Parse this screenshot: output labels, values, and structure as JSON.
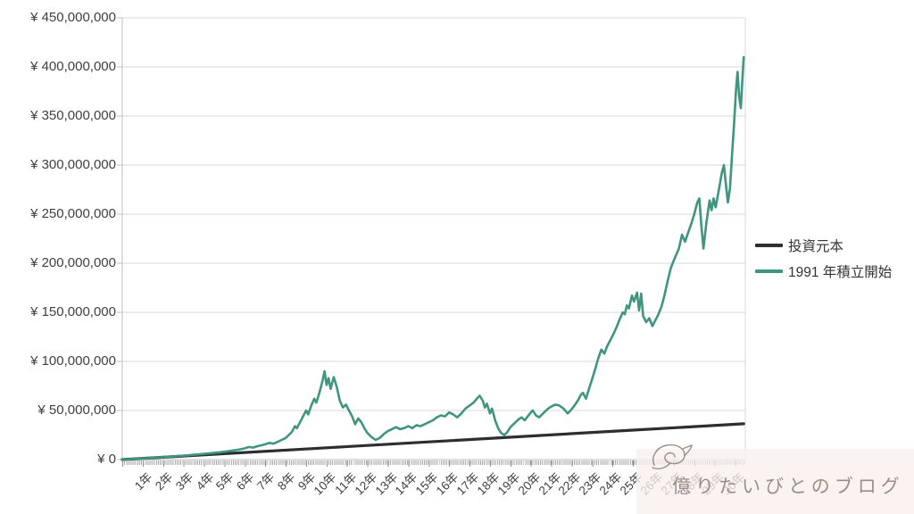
{
  "colors": {
    "principal_line": "#2E2E2E",
    "value_line": "#3F9580",
    "gridline": "#D9D9D9",
    "axis_line": "#BFBFBF",
    "tick_mark": "#9a9a9a",
    "axis_text": "#404040",
    "watermark_bg": "#F9F0ED",
    "watermark_text": "#9D8D86"
  },
  "legend": {
    "items": [
      {
        "label": "投資元本"
      },
      {
        "label": "1991 年積立開始"
      }
    ]
  },
  "watermark": {
    "text": "億りたいびとのブログ",
    "logo": "bird-sketch-icon"
  },
  "chart_data": {
    "type": "line",
    "title": "",
    "xlabel": "",
    "ylabel": "",
    "grid": "horizontal",
    "legend_position": "right",
    "x_axis": {
      "max_years": 30.5,
      "tick_labels": [
        "1年",
        "2年",
        "3年",
        "4年",
        "5年",
        "6年",
        "7年",
        "8年",
        "9年",
        "10年",
        "11年",
        "12年",
        "13年",
        "14年",
        "15年",
        "16年",
        "17年",
        "18年",
        "19年",
        "20年",
        "21年",
        "22年",
        "23年",
        "24年",
        "25年",
        "26年",
        "27年",
        "28年",
        "29年",
        "30年"
      ]
    },
    "y_axis": {
      "min": 0,
      "max": 450000000,
      "step": 50000000,
      "tick_labels": [
        "¥ 0",
        "¥ 50,000,000",
        "¥ 100,000,000",
        "¥ 150,000,000",
        "¥ 200,000,000",
        "¥ 250,000,000",
        "¥ 300,000,000",
        "¥ 350,000,000",
        "¥ 400,000,000",
        "¥ 450,000,000"
      ]
    },
    "units_note": "points are [years_since_1991_start, value_in_million_yen]",
    "series": [
      {
        "name": "投資元本",
        "color": "#2E2E2E",
        "stroke_width": 3.2,
        "points": [
          [
            0,
            0
          ],
          [
            5,
            6
          ],
          [
            10,
            12
          ],
          [
            15,
            18
          ],
          [
            20,
            24
          ],
          [
            25,
            30
          ],
          [
            30.42,
            36.5
          ]
        ]
      },
      {
        "name": "1991年積立開始",
        "color": "#3F9580",
        "stroke_width": 2.6,
        "points": [
          [
            0,
            0.05
          ],
          [
            0.25,
            0.3
          ],
          [
            0.5,
            0.6
          ],
          [
            0.75,
            0.9
          ],
          [
            1,
            1.2
          ],
          [
            1.25,
            1.5
          ],
          [
            1.5,
            1.9
          ],
          [
            1.75,
            2.2
          ],
          [
            2,
            2.5
          ],
          [
            2.25,
            2.9
          ],
          [
            2.5,
            3.2
          ],
          [
            2.75,
            3.6
          ],
          [
            3,
            4.0
          ],
          [
            3.25,
            4.4
          ],
          [
            3.5,
            4.9
          ],
          [
            3.75,
            5.3
          ],
          [
            4,
            5.8
          ],
          [
            4.25,
            6.3
          ],
          [
            4.5,
            6.9
          ],
          [
            4.75,
            7.4
          ],
          [
            5,
            8.0
          ],
          [
            5.25,
            8.7
          ],
          [
            5.5,
            9.5
          ],
          [
            5.75,
            10.4
          ],
          [
            6,
            11.5
          ],
          [
            6.2,
            12.8
          ],
          [
            6.4,
            12.2
          ],
          [
            6.6,
            13.5
          ],
          [
            6.8,
            14.5
          ],
          [
            7,
            15.5
          ],
          [
            7.2,
            17
          ],
          [
            7.4,
            16.2
          ],
          [
            7.6,
            18
          ],
          [
            7.8,
            20
          ],
          [
            8,
            22
          ],
          [
            8.15,
            25
          ],
          [
            8.3,
            28
          ],
          [
            8.45,
            34
          ],
          [
            8.55,
            32
          ],
          [
            8.7,
            38
          ],
          [
            8.85,
            44
          ],
          [
            9.0,
            50
          ],
          [
            9.1,
            46
          ],
          [
            9.25,
            55
          ],
          [
            9.4,
            62
          ],
          [
            9.5,
            58
          ],
          [
            9.65,
            68
          ],
          [
            9.8,
            80
          ],
          [
            9.9,
            90
          ],
          [
            10.0,
            76
          ],
          [
            10.1,
            83
          ],
          [
            10.2,
            72
          ],
          [
            10.35,
            84
          ],
          [
            10.5,
            74
          ],
          [
            10.65,
            60
          ],
          [
            10.8,
            53
          ],
          [
            10.95,
            56
          ],
          [
            11.1,
            50
          ],
          [
            11.25,
            44
          ],
          [
            11.4,
            36
          ],
          [
            11.55,
            42
          ],
          [
            11.7,
            38
          ],
          [
            11.85,
            32
          ],
          [
            12.0,
            27
          ],
          [
            12.2,
            23
          ],
          [
            12.4,
            20
          ],
          [
            12.6,
            22
          ],
          [
            12.8,
            26
          ],
          [
            13.0,
            29
          ],
          [
            13.2,
            31
          ],
          [
            13.4,
            33
          ],
          [
            13.6,
            31
          ],
          [
            13.8,
            32
          ],
          [
            14.0,
            34
          ],
          [
            14.2,
            32
          ],
          [
            14.4,
            35
          ],
          [
            14.6,
            34
          ],
          [
            14.8,
            36
          ],
          [
            15.0,
            38
          ],
          [
            15.2,
            40
          ],
          [
            15.4,
            43
          ],
          [
            15.6,
            45
          ],
          [
            15.8,
            44
          ],
          [
            16.0,
            48
          ],
          [
            16.2,
            46
          ],
          [
            16.4,
            43
          ],
          [
            16.6,
            47
          ],
          [
            16.8,
            52
          ],
          [
            17.0,
            55
          ],
          [
            17.2,
            58
          ],
          [
            17.4,
            63
          ],
          [
            17.5,
            65
          ],
          [
            17.65,
            60
          ],
          [
            17.75,
            53
          ],
          [
            17.85,
            57
          ],
          [
            18.0,
            47
          ],
          [
            18.1,
            52
          ],
          [
            18.25,
            40
          ],
          [
            18.4,
            32
          ],
          [
            18.55,
            27
          ],
          [
            18.7,
            25
          ],
          [
            18.85,
            28
          ],
          [
            19.0,
            33
          ],
          [
            19.2,
            37
          ],
          [
            19.4,
            41
          ],
          [
            19.55,
            43
          ],
          [
            19.7,
            40
          ],
          [
            19.85,
            44
          ],
          [
            20.0,
            48
          ],
          [
            20.1,
            50
          ],
          [
            20.25,
            45
          ],
          [
            20.4,
            43
          ],
          [
            20.55,
            46
          ],
          [
            20.7,
            49
          ],
          [
            20.85,
            52
          ],
          [
            21.0,
            54
          ],
          [
            21.2,
            56
          ],
          [
            21.4,
            55
          ],
          [
            21.6,
            52
          ],
          [
            21.8,
            47
          ],
          [
            21.95,
            50
          ],
          [
            22.1,
            54
          ],
          [
            22.3,
            60
          ],
          [
            22.45,
            66
          ],
          [
            22.55,
            68
          ],
          [
            22.7,
            62
          ],
          [
            22.85,
            72
          ],
          [
            23.0,
            82
          ],
          [
            23.15,
            92
          ],
          [
            23.3,
            103
          ],
          [
            23.45,
            112
          ],
          [
            23.6,
            108
          ],
          [
            23.75,
            116
          ],
          [
            23.9,
            122
          ],
          [
            24.05,
            128
          ],
          [
            24.2,
            135
          ],
          [
            24.35,
            143
          ],
          [
            24.5,
            150
          ],
          [
            24.6,
            148
          ],
          [
            24.7,
            157
          ],
          [
            24.8,
            154
          ],
          [
            24.95,
            167
          ],
          [
            25.05,
            161
          ],
          [
            25.2,
            170
          ],
          [
            25.3,
            152
          ],
          [
            25.4,
            169
          ],
          [
            25.5,
            146
          ],
          [
            25.65,
            140
          ],
          [
            25.8,
            144
          ],
          [
            25.95,
            136
          ],
          [
            26.1,
            142
          ],
          [
            26.25,
            148
          ],
          [
            26.4,
            156
          ],
          [
            26.55,
            168
          ],
          [
            26.7,
            182
          ],
          [
            26.85,
            195
          ],
          [
            27.0,
            203
          ],
          [
            27.15,
            210
          ],
          [
            27.25,
            215
          ],
          [
            27.4,
            229
          ],
          [
            27.55,
            222
          ],
          [
            27.7,
            231
          ],
          [
            27.85,
            240
          ],
          [
            28.0,
            250
          ],
          [
            28.15,
            262
          ],
          [
            28.25,
            266
          ],
          [
            28.35,
            238
          ],
          [
            28.45,
            215
          ],
          [
            28.6,
            242
          ],
          [
            28.75,
            264
          ],
          [
            28.85,
            254
          ],
          [
            28.95,
            266
          ],
          [
            29.05,
            257
          ],
          [
            29.2,
            274
          ],
          [
            29.35,
            292
          ],
          [
            29.45,
            300
          ],
          [
            29.55,
            280
          ],
          [
            29.65,
            262
          ],
          [
            29.75,
            276
          ],
          [
            29.85,
            310
          ],
          [
            29.95,
            342
          ],
          [
            30.05,
            378
          ],
          [
            30.12,
            395
          ],
          [
            30.2,
            370
          ],
          [
            30.28,
            358
          ],
          [
            30.35,
            385
          ],
          [
            30.42,
            410
          ]
        ]
      }
    ]
  }
}
